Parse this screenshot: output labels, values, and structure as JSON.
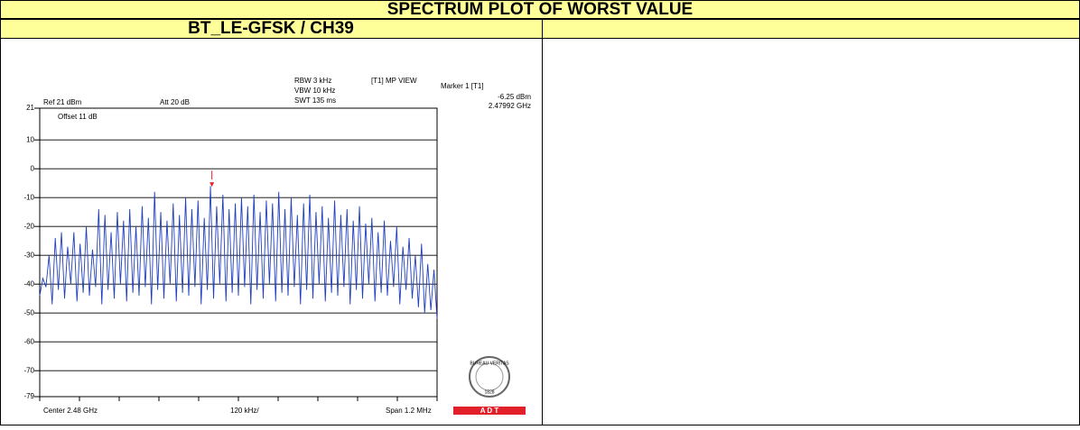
{
  "header": {
    "title": "SPECTRUM PLOT OF WORST VALUE",
    "subtitle": "BT_LE-GFSK / CH39"
  },
  "chart_data": {
    "type": "line",
    "color": "#1f3fbf",
    "annotations": {
      "rbw": "RBW 3 kHz",
      "vbw": "VBW 10 kHz",
      "swt": "SWT 135 ms",
      "view": "[T1] MP VIEW",
      "ref": "Ref 21 dBm",
      "att": "Att 20 dB",
      "offset": "Offset 11 dB",
      "center": "Center 2.48 GHz",
      "div": "120 kHz/",
      "span": "Span 1.2 MHz"
    },
    "marker": {
      "label": "Marker 1 [T1]",
      "value": -6.25,
      "value_label": "-6.25 dBm",
      "x": 2.47992,
      "x_label": "2.47992 GHz"
    },
    "xlim": [
      2.4794,
      2.4806
    ],
    "ylim": [
      -79,
      21
    ],
    "yticks": [
      21,
      10,
      0,
      -10,
      -20,
      -30,
      -40,
      -50,
      -60,
      -70,
      -79
    ],
    "grid": true,
    "values": [
      -44,
      -38,
      -41,
      -30,
      -47,
      -24,
      -42,
      -22,
      -45,
      -27,
      -40,
      -22,
      -46,
      -26,
      -43,
      -20,
      -44,
      -28,
      -41,
      -14,
      -47,
      -16,
      -42,
      -22,
      -45,
      -15,
      -40,
      -18,
      -46,
      -14,
      -43,
      -20,
      -44,
      -13,
      -41,
      -17,
      -47,
      -8,
      -42,
      -15,
      -45,
      -18,
      -40,
      -12,
      -46,
      -16,
      -43,
      -10,
      -44,
      -14,
      -41,
      -11,
      -47,
      -17,
      -42,
      -6,
      -45,
      -13,
      -40,
      -9,
      -46,
      -14,
      -43,
      -12,
      -44,
      -10,
      -41,
      -13,
      -47,
      -9,
      -42,
      -15,
      -45,
      -11,
      -40,
      -12,
      -46,
      -8,
      -43,
      -14,
      -44,
      -10,
      -41,
      -16,
      -47,
      -12,
      -42,
      -9,
      -45,
      -15,
      -40,
      -13,
      -46,
      -17,
      -43,
      -11,
      -44,
      -16,
      -41,
      -14,
      -47,
      -18,
      -42,
      -13,
      -45,
      -19,
      -40,
      -17,
      -46,
      -22,
      -43,
      -18,
      -44,
      -25,
      -41,
      -20,
      -47,
      -27,
      -42,
      -24,
      -45,
      -30,
      -48,
      -26,
      -50,
      -33,
      -49,
      -35,
      -52
    ]
  },
  "logo": {
    "name": "BUREAU VERITAS",
    "year": "1828",
    "bar": "A D T"
  }
}
